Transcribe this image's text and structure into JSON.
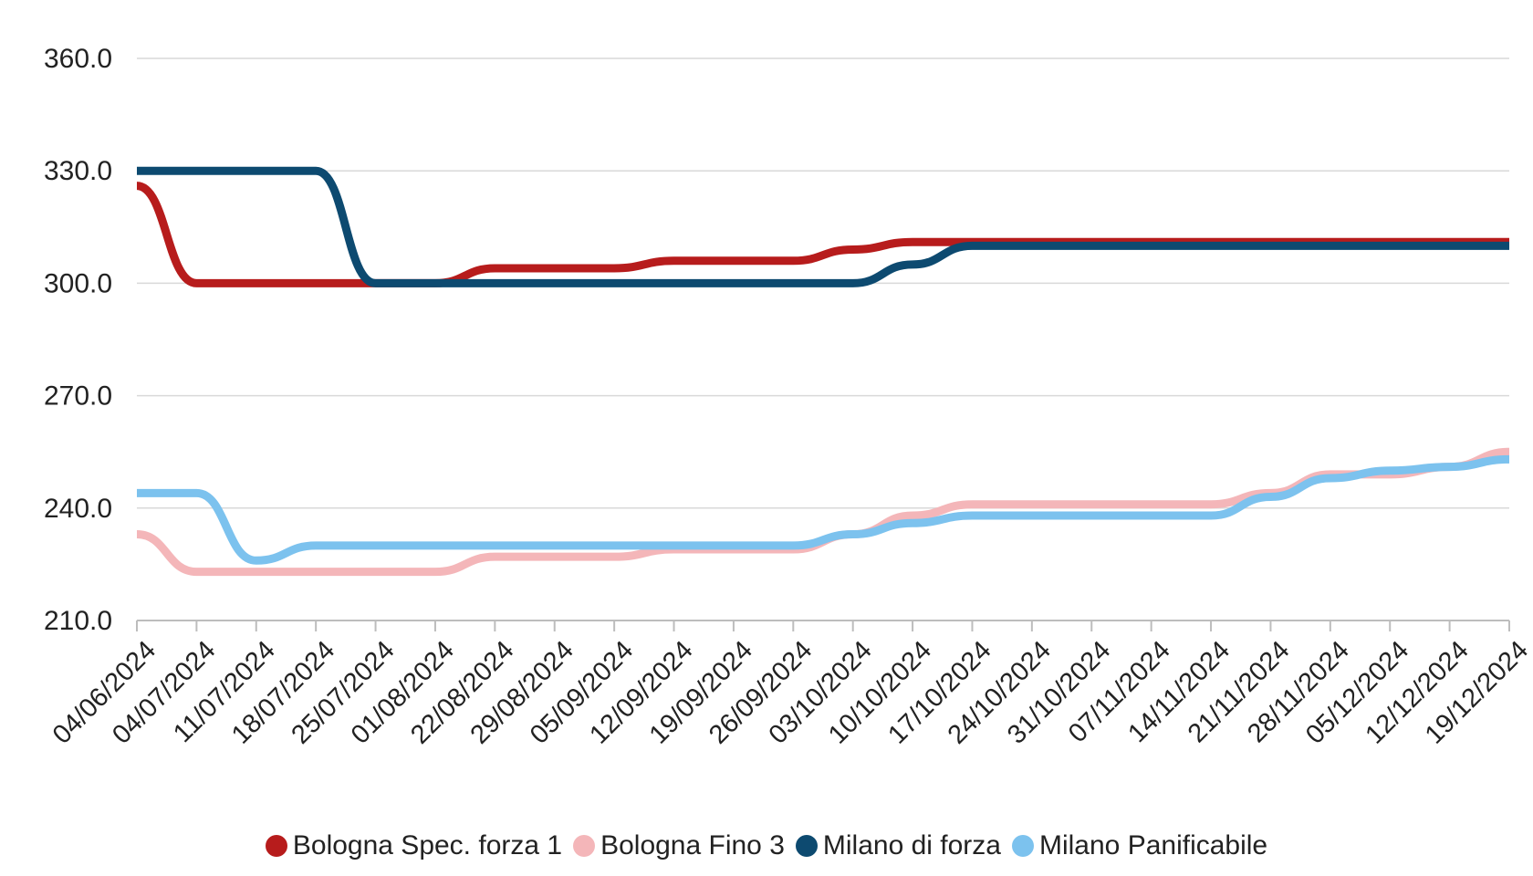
{
  "chart_data": {
    "type": "line",
    "title": "",
    "xlabel": "",
    "ylabel": "",
    "ylim": [
      210,
      360
    ],
    "yticks": [
      "210.0",
      "240.0",
      "270.0",
      "300.0",
      "330.0",
      "360.0"
    ],
    "grid": true,
    "legend_position": "bottom",
    "categories": [
      "04/06/2024",
      "04/07/2024",
      "11/07/2024",
      "18/07/2024",
      "25/07/2024",
      "01/08/2024",
      "22/08/2024",
      "29/08/2024",
      "05/09/2024",
      "12/09/2024",
      "19/09/2024",
      "26/09/2024",
      "03/10/2024",
      "10/10/2024",
      "17/10/2024",
      "24/10/2024",
      "31/10/2024",
      "07/11/2024",
      "14/11/2024",
      "21/11/2024",
      "28/11/2024",
      "05/12/2024",
      "12/12/2024",
      "19/12/2024"
    ],
    "series": [
      {
        "name": "Bologna Spec. forza 1",
        "color": "#b71c1c",
        "values": [
          326,
          300,
          300,
          300,
          300,
          300,
          304,
          304,
          304,
          306,
          306,
          306,
          309,
          311,
          311,
          311,
          311,
          311,
          311,
          311,
          311,
          311,
          311,
          311
        ]
      },
      {
        "name": "Bologna Fino 3",
        "color": "#f4b6b9",
        "values": [
          233,
          223,
          223,
          223,
          223,
          223,
          227,
          227,
          227,
          229,
          229,
          229,
          233,
          238,
          241,
          241,
          241,
          241,
          241,
          244,
          249,
          249,
          251,
          255
        ]
      },
      {
        "name": "Milano di forza",
        "color": "#0d4a70",
        "values": [
          330,
          330,
          330,
          330,
          300,
          300,
          300,
          300,
          300,
          300,
          300,
          300,
          300,
          305,
          310,
          310,
          310,
          310,
          310,
          310,
          310,
          310,
          310,
          310
        ]
      },
      {
        "name": "Milano Panificabile",
        "color": "#7cc2ee",
        "values": [
          244,
          244,
          226,
          230,
          230,
          230,
          230,
          230,
          230,
          230,
          230,
          230,
          233,
          236,
          238,
          238,
          238,
          238,
          238,
          243,
          248,
          250,
          251,
          253
        ]
      }
    ]
  }
}
